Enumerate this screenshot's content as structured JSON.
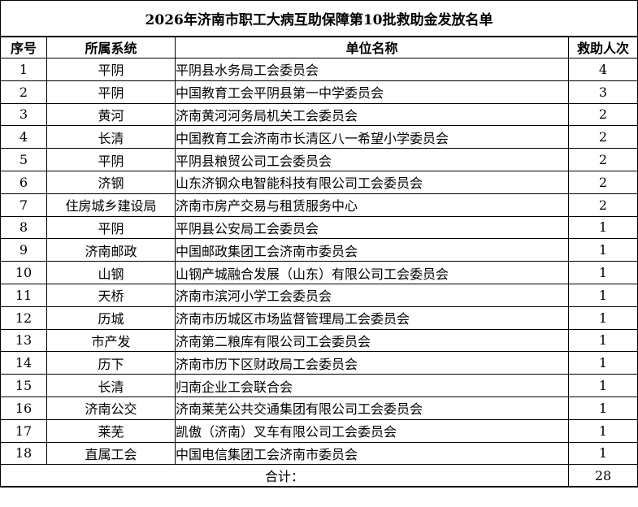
{
  "title": "2026年济南市职工大病互助保障第10批救助金发放名单",
  "table": {
    "headers": [
      "序号",
      "所属系统",
      "单位名称",
      "救助人次"
    ],
    "rows": [
      [
        "1",
        "平阴",
        "平阴县水务局工会委员会",
        "4"
      ],
      [
        "2",
        "平阴",
        "中国教育工会平阴县第一中学委员会",
        "3"
      ],
      [
        "3",
        "黄河",
        "济南黄河河务局机关工会委员会",
        "2"
      ],
      [
        "4",
        "长清",
        "中国教育工会济南市长清区八一希望小学委员会",
        "2"
      ],
      [
        "5",
        "平阴",
        "平阴县粮贸公司工会委员会",
        "2"
      ],
      [
        "6",
        "济钢",
        "山东济钢众电智能科技有限公司工会委员会",
        "2"
      ],
      [
        "7",
        "住房城乡建设局",
        "济南市房产交易与租赁服务中心",
        "2"
      ],
      [
        "8",
        "平阴",
        "平阴县公安局工会委员会",
        "1"
      ],
      [
        "9",
        "济南邮政",
        "中国邮政集团工会济南市委员会",
        "1"
      ],
      [
        "10",
        "山钢",
        "山钢产城融合发展（山东）有限公司工会委员会",
        "1"
      ],
      [
        "11",
        "天桥",
        "济南市滨河小学工会委员会",
        "1"
      ],
      [
        "12",
        "历城",
        "济南市历城区市场监督管理局工会委员会",
        "1"
      ],
      [
        "13",
        "市产发",
        "济南第二粮库有限公司工会委员会",
        "1"
      ],
      [
        "14",
        "历下",
        "济南市历下区财政局工会委员会",
        "1"
      ],
      [
        "15",
        "长清",
        "归南企业工会联合会",
        "1"
      ],
      [
        "16",
        "济南公交",
        "济南莱芜公共交通集团有限公司工会委员会",
        "1"
      ],
      [
        "17",
        "莱芜",
        "凯傲（济南）叉车有限公司工会委员会",
        "1"
      ],
      [
        "18",
        "直属工会",
        "中国电信集团工会济南市委员会",
        "1"
      ]
    ],
    "total_label": "合计：",
    "total_value": "28"
  },
  "colors": {
    "background": "#ffffff",
    "text": "#000000",
    "border": "#000000"
  }
}
